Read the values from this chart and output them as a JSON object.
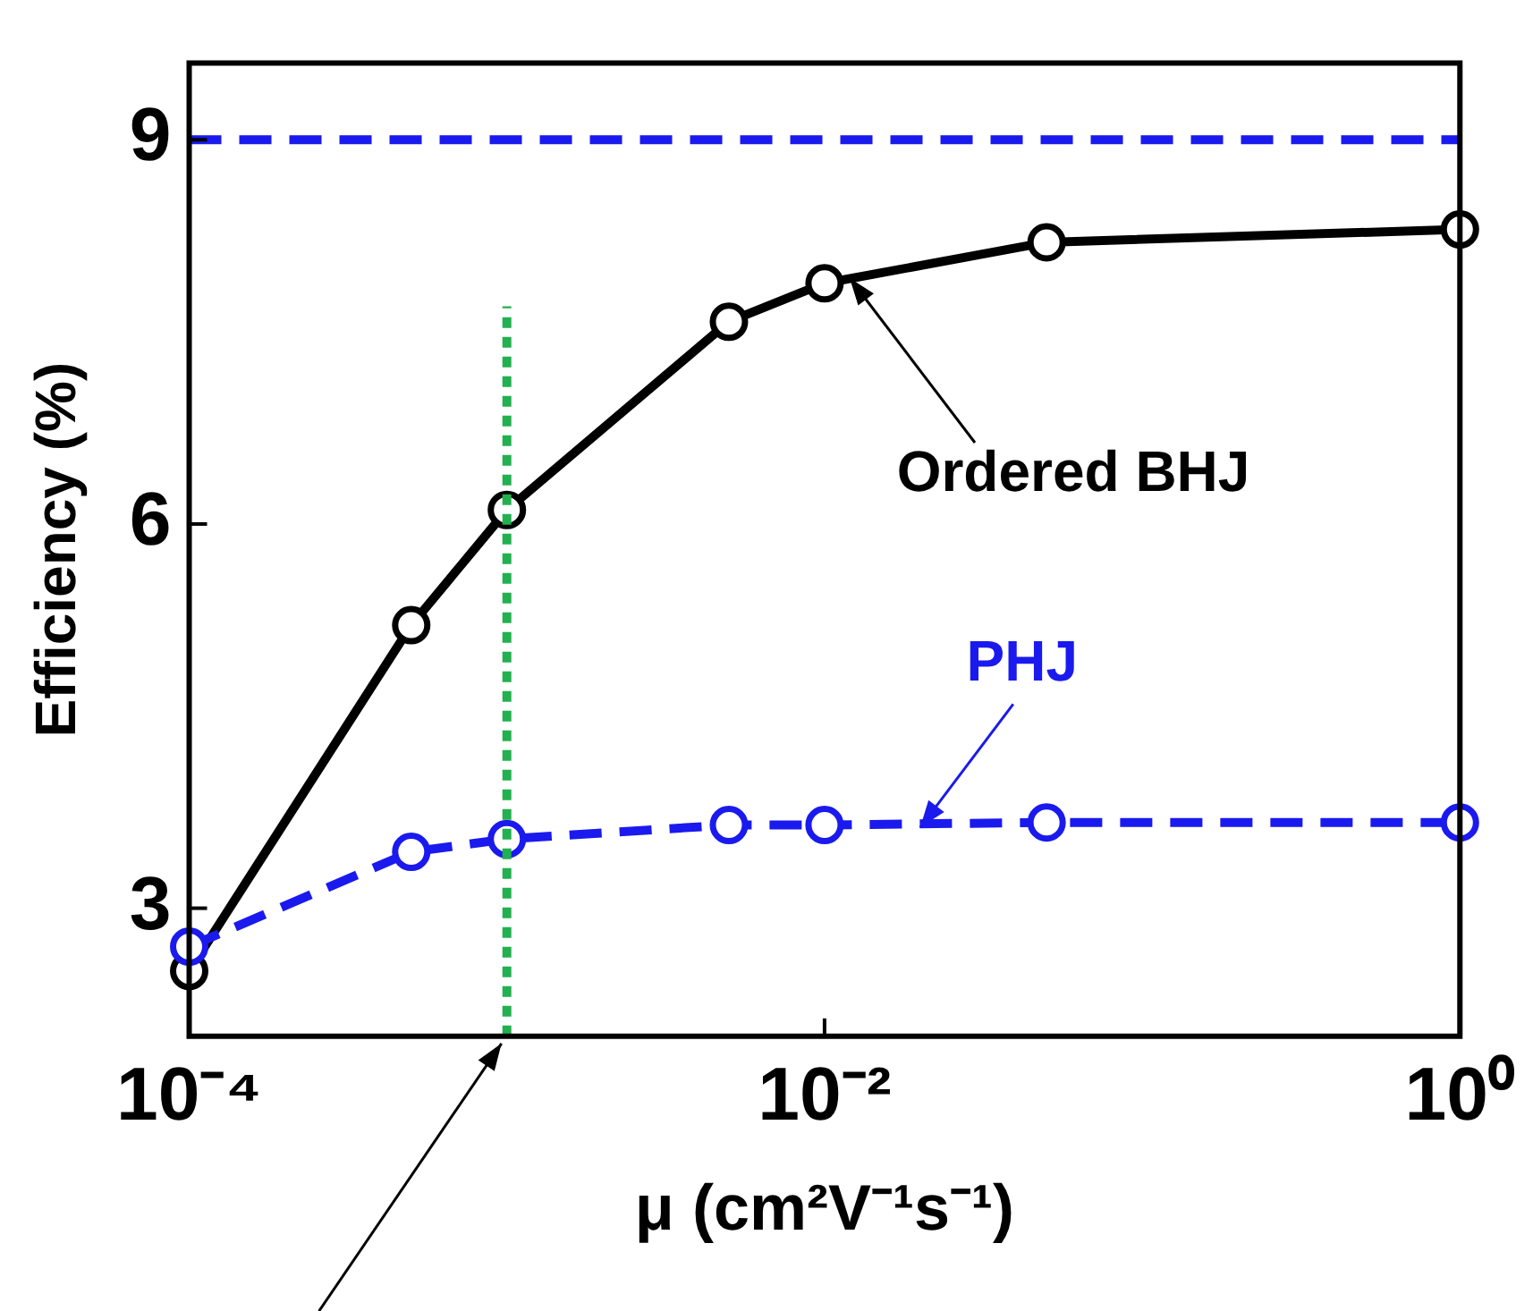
{
  "chart_data": {
    "type": "line",
    "xlabel": "μ (cm²V⁻¹s⁻¹)",
    "ylabel": "Efficiency (%)",
    "log": "x",
    "xlim": [
      0.0001,
      1
    ],
    "xticks": [
      {
        "value": 0.0001,
        "label": "10⁻⁴"
      },
      {
        "value": 0.01,
        "label": "10⁻²"
      },
      {
        "value": 1,
        "label": "10⁰"
      }
    ],
    "ylim": [
      2,
      9.6
    ],
    "yticks": [
      3,
      6,
      9
    ],
    "grid": false,
    "legend": false,
    "marker": "circle",
    "x": [
      0.0001,
      0.0005,
      0.001,
      0.005,
      0.01,
      0.05,
      1
    ],
    "series": [
      {
        "color": "#000000",
        "line_style": "solid",
        "values": [
          2.51,
          5.21,
          6.11,
          7.58,
          7.88,
          8.2,
          8.3
        ]
      },
      {
        "color": "#1a1aee",
        "line_style": "dashed",
        "values": [
          2.7,
          3.44,
          3.54,
          3.65,
          3.65,
          3.67,
          3.67
        ]
      },
      {
        "color": "#22b050",
        "line_style": "dotted",
        "marker": "none",
        "x": [
          0.001,
          0.001
        ],
        "values": [
          2,
          7.7
        ]
      }
    ],
    "ref_lines": [
      {
        "axis": "y",
        "value": 9,
        "color": "#1a1aee",
        "line_style": "dashed"
      }
    ],
    "annotations": [
      {
        "text": "Ordered BHJ",
        "x": 0.012,
        "y": 7.92
      },
      {
        "text": "PHJ",
        "x": 0.02,
        "y": 3.63
      }
    ]
  }
}
